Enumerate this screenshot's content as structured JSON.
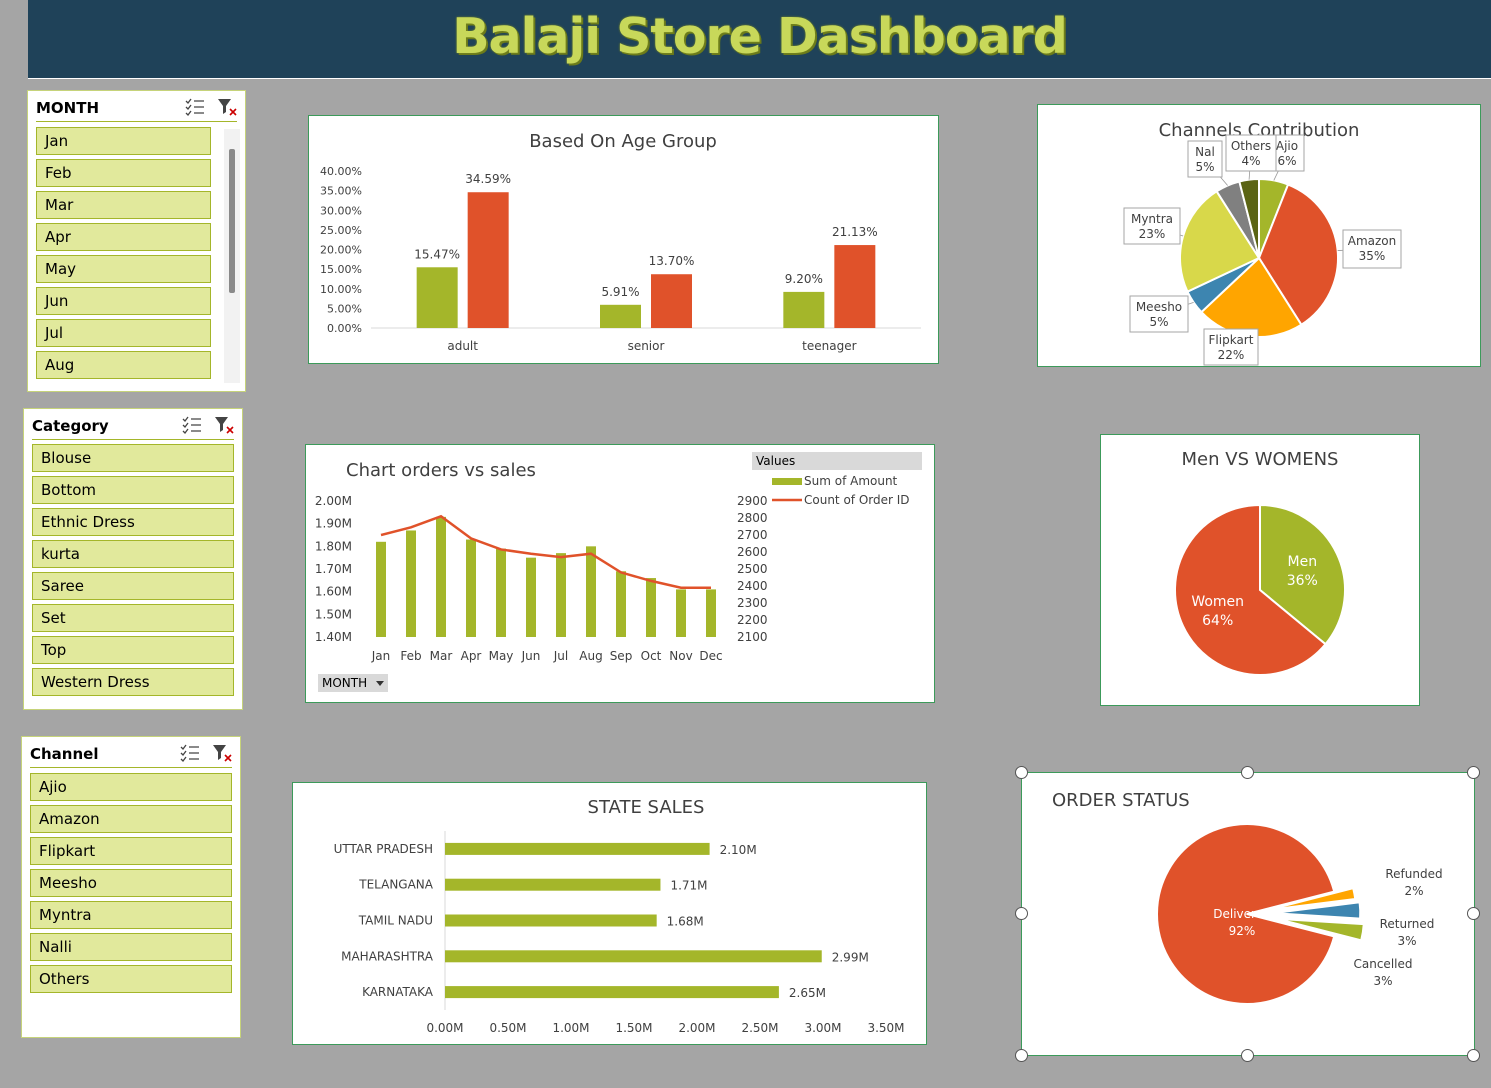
{
  "header": {
    "title": "Balaji Store Dashboard"
  },
  "colors": {
    "green": "#a4b62a",
    "orange": "#e0522a",
    "header_bg": "#1f4259",
    "background": "#a5a5a5"
  },
  "slicers": {
    "month": {
      "title": "MONTH",
      "items": [
        "Jan",
        "Feb",
        "Mar",
        "Apr",
        "May",
        "Jun",
        "Jul",
        "Aug"
      ]
    },
    "category": {
      "title": "Category",
      "items": [
        "Blouse",
        "Bottom",
        "Ethnic Dress",
        "kurta",
        "Saree",
        "Set",
        "Top",
        "Western Dress"
      ]
    },
    "channel": {
      "title": "Channel",
      "items": [
        "Ajio",
        "Amazon",
        "Flipkart",
        "Meesho",
        "Myntra",
        "Nalli",
        "Others"
      ]
    },
    "icons": [
      "multi-select-icon",
      "clear-filter-icon"
    ]
  },
  "chart_data": [
    {
      "id": "age",
      "type": "bar",
      "title": "Based On Age Group",
      "categories": [
        "adult",
        "senior",
        "teenager"
      ],
      "series": [
        {
          "values": [
            15.47,
            5.91,
            9.2
          ],
          "labels": [
            "15.47%",
            "5.91%",
            "9.20%"
          ],
          "color": "#a4b62a"
        },
        {
          "values": [
            34.59,
            13.7,
            21.13
          ],
          "labels": [
            "34.59%",
            "13.70%",
            "21.13%"
          ],
          "color": "#e0522a"
        }
      ],
      "ylim": [
        0,
        40
      ],
      "yticks": [
        "0.00%",
        "5.00%",
        "10.00%",
        "15.00%",
        "20.00%",
        "25.00%",
        "30.00%",
        "35.00%",
        "40.00%"
      ]
    },
    {
      "id": "channels",
      "type": "pie",
      "title": "Channels Contribution",
      "slices": [
        {
          "name": "Ajio",
          "value": 6,
          "label": "6%",
          "color": "#a4b62a"
        },
        {
          "name": "Amazon",
          "value": 35,
          "label": "35%",
          "color": "#e0522a"
        },
        {
          "name": "Flipkart",
          "value": 22,
          "label": "22%",
          "color": "#ffa500"
        },
        {
          "name": "Meesho",
          "value": 5,
          "label": "5%",
          "color": "#3d85b0"
        },
        {
          "name": "Myntra",
          "value": 23,
          "label": "23%",
          "color": "#d8d84a"
        },
        {
          "name": "Nal",
          "value": 5,
          "label": "5%",
          "color": "#808080"
        },
        {
          "name": "Others",
          "value": 4,
          "label": "4%",
          "color": "#5b6414"
        }
      ]
    },
    {
      "id": "orders",
      "type": "bar+line",
      "title": "Chart orders vs sales",
      "legend_title": "Values",
      "categories": [
        "Jan",
        "Feb",
        "Mar",
        "Apr",
        "May",
        "Jun",
        "Jul",
        "Aug",
        "Sep",
        "Oct",
        "Nov",
        "Dec"
      ],
      "series": [
        {
          "name": "Sum of Amount",
          "type": "bar",
          "axis": "left",
          "values": [
            1.82,
            1.87,
            1.93,
            1.83,
            1.79,
            1.75,
            1.77,
            1.8,
            1.69,
            1.66,
            1.61,
            1.61
          ],
          "color": "#a4b62a"
        },
        {
          "name": "Count of Order ID",
          "type": "line",
          "axis": "right",
          "values": [
            2700,
            2745,
            2810,
            2680,
            2615,
            2590,
            2570,
            2590,
            2480,
            2430,
            2390,
            2390
          ],
          "color": "#e0522a"
        }
      ],
      "ylim_left": [
        1.4,
        2.0
      ],
      "yticks_left": [
        "1.40M",
        "1.50M",
        "1.60M",
        "1.70M",
        "1.80M",
        "1.90M",
        "2.00M"
      ],
      "ylim_right": [
        2100,
        2900
      ],
      "yticks_right": [
        "2100",
        "2200",
        "2300",
        "2400",
        "2500",
        "2600",
        "2700",
        "2800",
        "2900"
      ],
      "filter_button": "MONTH"
    },
    {
      "id": "gender",
      "type": "pie",
      "title": "Men VS WOMENS",
      "slices": [
        {
          "name": "Men",
          "value": 36,
          "label": "36%",
          "color": "#a4b62a"
        },
        {
          "name": "Women",
          "value": 64,
          "label": "64%",
          "color": "#e0522a"
        }
      ]
    },
    {
      "id": "states",
      "type": "bar-horizontal",
      "title": "STATE SALES",
      "categories": [
        "UTTAR PRADESH",
        "TELANGANA",
        "TAMIL NADU",
        "MAHARASHTRA",
        "KARNATAKA"
      ],
      "values": [
        2.1,
        1.71,
        1.68,
        2.99,
        2.65
      ],
      "labels": [
        "2.10M",
        "1.71M",
        "1.68M",
        "2.99M",
        "2.65M"
      ],
      "xlim": [
        0,
        3.5
      ],
      "xticks": [
        "0.00M",
        "0.50M",
        "1.00M",
        "1.50M",
        "2.00M",
        "2.50M",
        "3.00M",
        "3.50M"
      ],
      "color": "#a4b62a"
    },
    {
      "id": "status",
      "type": "pie",
      "title": "ORDER STATUS",
      "slices": [
        {
          "name": "Delivered",
          "value": 92,
          "label": "92%",
          "color": "#e0522a"
        },
        {
          "name": "Refunded",
          "value": 2,
          "label": "2%",
          "color": "#ffa500"
        },
        {
          "name": "Returned",
          "value": 3,
          "label": "3%",
          "color": "#3d85b0"
        },
        {
          "name": "Cancelled",
          "value": 3,
          "label": "3%",
          "color": "#a4b62a"
        }
      ]
    }
  ]
}
